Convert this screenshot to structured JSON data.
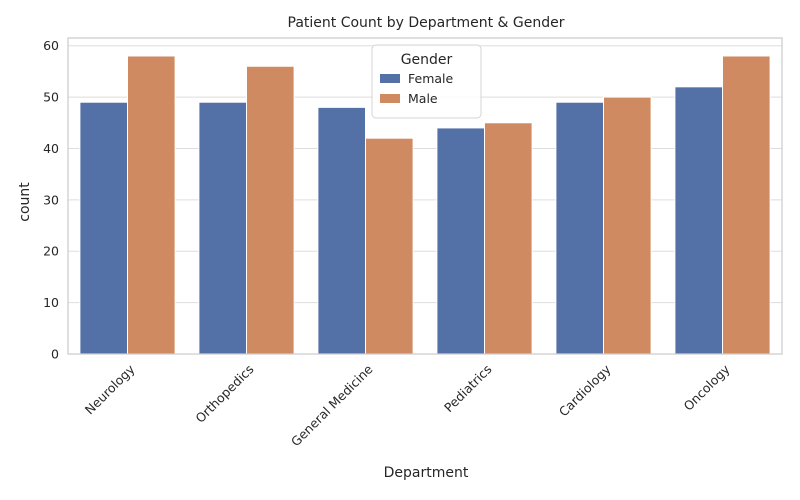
{
  "chart_data": {
    "type": "bar",
    "title": "Patient Count by Department & Gender",
    "xlabel": "Department",
    "ylabel": "count",
    "categories": [
      "Neurology",
      "Orthopedics",
      "General Medicine",
      "Pediatrics",
      "Cardiology",
      "Oncology"
    ],
    "series": [
      {
        "name": "Female",
        "values": [
          49,
          49,
          48,
          44,
          49,
          52
        ],
        "color": "#5471a7"
      },
      {
        "name": "Male",
        "values": [
          58,
          56,
          42,
          45,
          50,
          58
        ],
        "color": "#d08a61"
      }
    ],
    "ylim": [
      0,
      61.5
    ],
    "yticks": [
      0,
      10,
      20,
      30,
      40,
      50,
      60
    ],
    "grid": true,
    "legend": {
      "title": "Gender",
      "position": "top-center"
    }
  }
}
